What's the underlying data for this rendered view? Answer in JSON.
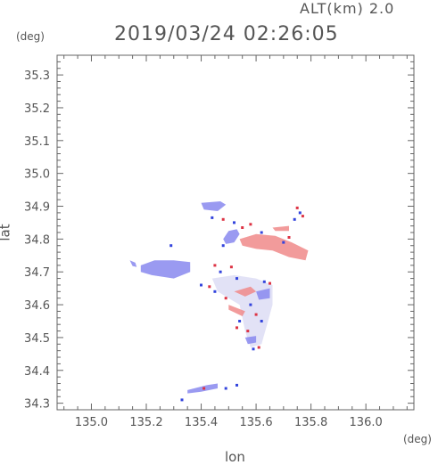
{
  "header": {
    "altitude_label": "ALT(km) 2.0",
    "timestamp": "2019/03/24 02:26:05"
  },
  "axes": {
    "x_unit": "(deg)",
    "y_unit": "(deg)",
    "xlabel": "lon",
    "ylabel": "lat"
  },
  "chart_data": {
    "type": "heatmap",
    "xlim": [
      134.875,
      136.175
    ],
    "ylim": [
      34.28,
      35.36
    ],
    "x_ticks": [
      135.0,
      135.2,
      135.4,
      135.6,
      135.8,
      136.0
    ],
    "y_ticks": [
      34.3,
      34.4,
      34.5,
      34.6,
      34.7,
      34.8,
      34.9,
      35.0,
      35.1,
      35.2,
      35.3
    ],
    "x_tick_labels": [
      "135.0",
      "135.2",
      "135.4",
      "135.6",
      "135.8",
      "136.0"
    ],
    "y_tick_labels": [
      "34.3",
      "34.4",
      "34.5",
      "34.6",
      "34.7",
      "34.8",
      "34.9",
      "35.0",
      "35.1",
      "35.2",
      "35.3"
    ],
    "grid": false,
    "colors": {
      "approaching": "#8888ee",
      "receding": "#f08a8a",
      "neutral": "#ddddf5"
    },
    "regions": [
      {
        "kind": "approaching",
        "points": [
          [
            135.14,
            34.735
          ],
          [
            135.16,
            34.728
          ],
          [
            135.165,
            34.715
          ],
          [
            135.15,
            34.718
          ]
        ]
      },
      {
        "kind": "approaching",
        "points": [
          [
            135.18,
            34.72
          ],
          [
            135.23,
            34.735
          ],
          [
            135.3,
            34.735
          ],
          [
            135.36,
            34.73
          ],
          [
            135.36,
            34.7
          ],
          [
            135.3,
            34.68
          ],
          [
            135.22,
            34.69
          ],
          [
            135.18,
            34.7
          ]
        ]
      },
      {
        "kind": "approaching",
        "points": [
          [
            135.4,
            34.91
          ],
          [
            135.47,
            34.915
          ],
          [
            135.49,
            34.905
          ],
          [
            135.46,
            34.885
          ],
          [
            135.41,
            34.89
          ]
        ]
      },
      {
        "kind": "approaching",
        "points": [
          [
            135.48,
            34.8
          ],
          [
            135.5,
            34.825
          ],
          [
            135.53,
            34.83
          ],
          [
            135.54,
            34.815
          ],
          [
            135.52,
            34.79
          ],
          [
            135.49,
            34.785
          ]
        ]
      },
      {
        "kind": "receding",
        "points": [
          [
            135.54,
            34.8
          ],
          [
            135.6,
            34.815
          ],
          [
            135.67,
            34.81
          ],
          [
            135.73,
            34.79
          ],
          [
            135.79,
            34.765
          ],
          [
            135.78,
            34.735
          ],
          [
            135.72,
            34.745
          ],
          [
            135.66,
            34.765
          ],
          [
            135.6,
            34.77
          ],
          [
            135.55,
            34.78
          ]
        ]
      },
      {
        "kind": "receding",
        "points": [
          [
            135.66,
            34.835
          ],
          [
            135.72,
            34.84
          ],
          [
            135.72,
            34.825
          ],
          [
            135.67,
            34.825
          ]
        ]
      },
      {
        "kind": "neutral",
        "points": [
          [
            135.44,
            34.68
          ],
          [
            135.52,
            34.69
          ],
          [
            135.6,
            34.68
          ],
          [
            135.66,
            34.66
          ],
          [
            135.66,
            34.6
          ],
          [
            135.64,
            34.54
          ],
          [
            135.62,
            34.48
          ],
          [
            135.58,
            34.47
          ],
          [
            135.56,
            34.52
          ],
          [
            135.54,
            34.6
          ],
          [
            135.46,
            34.64
          ]
        ]
      },
      {
        "kind": "receding",
        "points": [
          [
            135.52,
            34.64
          ],
          [
            135.58,
            34.655
          ],
          [
            135.6,
            34.64
          ],
          [
            135.56,
            34.625
          ]
        ]
      },
      {
        "kind": "receding",
        "points": [
          [
            135.5,
            34.6
          ],
          [
            135.56,
            34.58
          ],
          [
            135.55,
            34.565
          ],
          [
            135.5,
            34.585
          ]
        ]
      },
      {
        "kind": "approaching",
        "points": [
          [
            135.6,
            34.64
          ],
          [
            135.65,
            34.65
          ],
          [
            135.65,
            34.62
          ],
          [
            135.61,
            34.615
          ]
        ]
      },
      {
        "kind": "approaching",
        "points": [
          [
            135.56,
            34.5
          ],
          [
            135.6,
            34.505
          ],
          [
            135.6,
            34.485
          ],
          [
            135.57,
            34.48
          ]
        ]
      },
      {
        "kind": "approaching",
        "points": [
          [
            135.35,
            34.34
          ],
          [
            135.42,
            34.355
          ],
          [
            135.46,
            34.36
          ],
          [
            135.46,
            34.345
          ],
          [
            135.4,
            34.335
          ],
          [
            135.35,
            34.33
          ]
        ]
      }
    ],
    "speckles": [
      {
        "kind": "approaching",
        "xy": [
          135.44,
          34.865
        ]
      },
      {
        "kind": "receding",
        "xy": [
          135.48,
          34.86
        ]
      },
      {
        "kind": "approaching",
        "xy": [
          135.52,
          34.85
        ]
      },
      {
        "kind": "receding",
        "xy": [
          135.55,
          34.835
        ]
      },
      {
        "kind": "receding",
        "xy": [
          135.58,
          34.845
        ]
      },
      {
        "kind": "approaching",
        "xy": [
          135.62,
          34.82
        ]
      },
      {
        "kind": "receding",
        "xy": [
          135.75,
          34.895
        ]
      },
      {
        "kind": "approaching",
        "xy": [
          135.76,
          34.88
        ]
      },
      {
        "kind": "receding",
        "xy": [
          135.77,
          34.87
        ]
      },
      {
        "kind": "approaching",
        "xy": [
          135.74,
          34.86
        ]
      },
      {
        "kind": "receding",
        "xy": [
          135.72,
          34.805
        ]
      },
      {
        "kind": "approaching",
        "xy": [
          135.7,
          34.79
        ]
      },
      {
        "kind": "receding",
        "xy": [
          135.45,
          34.72
        ]
      },
      {
        "kind": "approaching",
        "xy": [
          135.47,
          34.7
        ]
      },
      {
        "kind": "receding",
        "xy": [
          135.51,
          34.715
        ]
      },
      {
        "kind": "approaching",
        "xy": [
          135.53,
          34.68
        ]
      },
      {
        "kind": "approaching",
        "xy": [
          135.4,
          34.66
        ]
      },
      {
        "kind": "receding",
        "xy": [
          135.43,
          34.655
        ]
      },
      {
        "kind": "approaching",
        "xy": [
          135.45,
          34.64
        ]
      },
      {
        "kind": "receding",
        "xy": [
          135.49,
          34.62
        ]
      },
      {
        "kind": "approaching",
        "xy": [
          135.63,
          34.67
        ]
      },
      {
        "kind": "receding",
        "xy": [
          135.65,
          34.665
        ]
      },
      {
        "kind": "approaching",
        "xy": [
          135.58,
          34.6
        ]
      },
      {
        "kind": "receding",
        "xy": [
          135.6,
          34.57
        ]
      },
      {
        "kind": "approaching",
        "xy": [
          135.54,
          34.55
        ]
      },
      {
        "kind": "receding",
        "xy": [
          135.53,
          34.53
        ]
      },
      {
        "kind": "approaching",
        "xy": [
          135.62,
          34.55
        ]
      },
      {
        "kind": "receding",
        "xy": [
          135.57,
          34.52
        ]
      },
      {
        "kind": "approaching",
        "xy": [
          135.59,
          34.465
        ]
      },
      {
        "kind": "receding",
        "xy": [
          135.61,
          34.47
        ]
      },
      {
        "kind": "approaching",
        "xy": [
          135.33,
          34.31
        ]
      },
      {
        "kind": "approaching",
        "xy": [
          135.49,
          34.345
        ]
      },
      {
        "kind": "receding",
        "xy": [
          135.41,
          34.345
        ]
      },
      {
        "kind": "approaching",
        "xy": [
          135.53,
          34.355
        ]
      },
      {
        "kind": "approaching",
        "xy": [
          135.29,
          34.78
        ]
      },
      {
        "kind": "approaching",
        "xy": [
          135.48,
          34.78
        ]
      }
    ]
  }
}
